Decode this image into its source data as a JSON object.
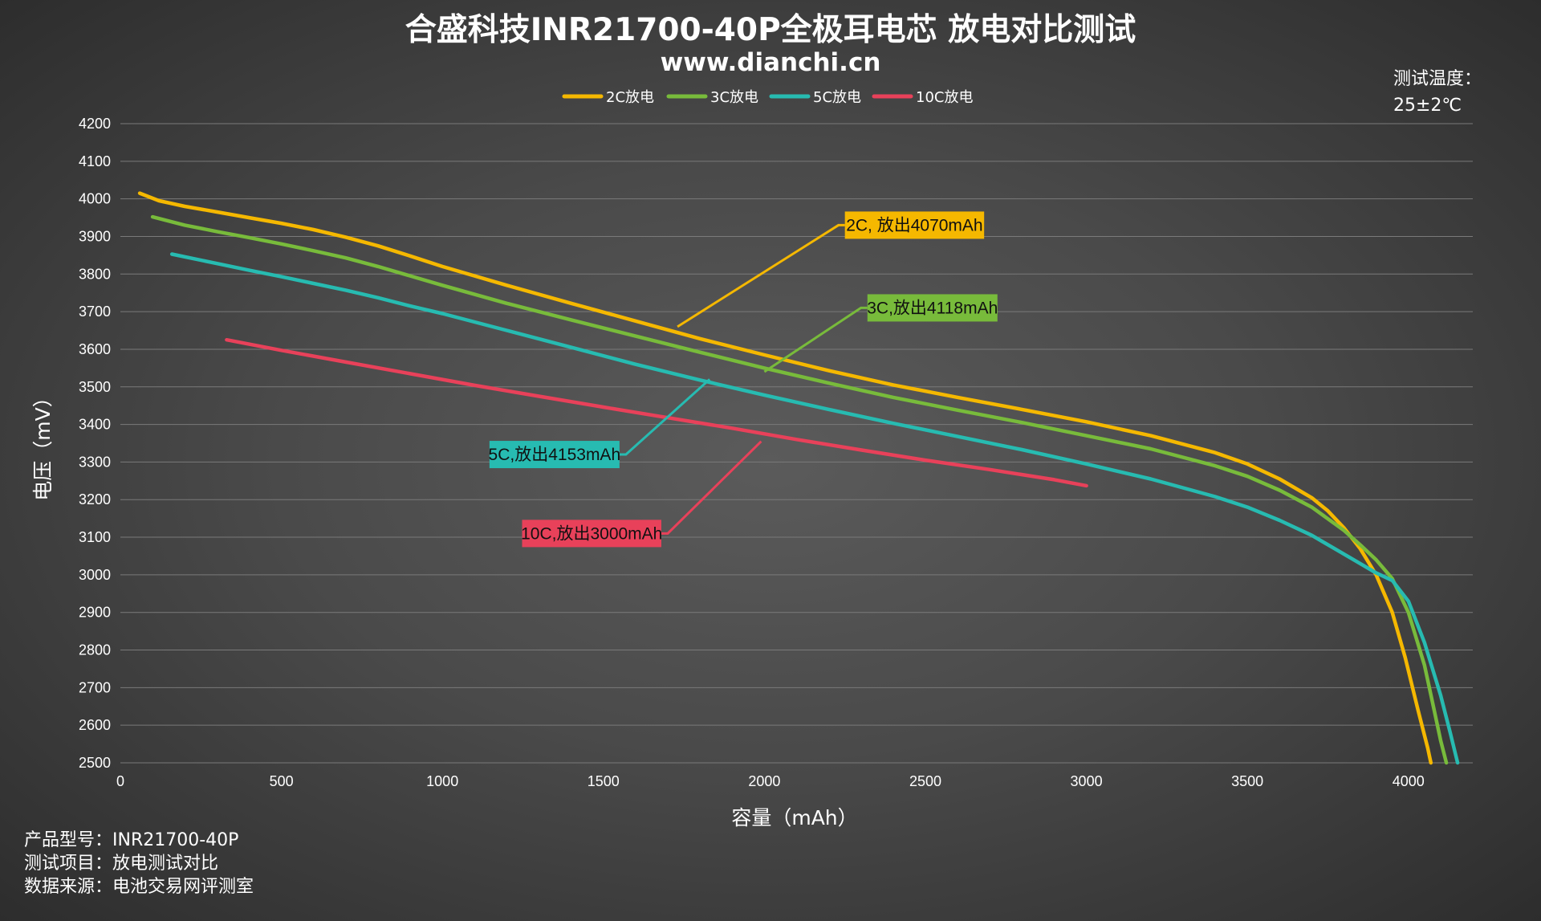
{
  "chart_data": {
    "type": "line",
    "title": "合盛科技INR21700-40P全极耳电芯 放电对比测试",
    "subtitle": "www.dianchi.cn",
    "xlabel": "容量（mAh）",
    "ylabel": "电压（mV）",
    "xlim": [
      0,
      4200
    ],
    "ylim": [
      2500,
      4200
    ],
    "x_ticks": [
      "0",
      "500",
      "1000",
      "1500",
      "2000",
      "2500",
      "3000",
      "3500",
      "4000"
    ],
    "y_ticks": [
      "4200",
      "4100",
      "4000",
      "3900",
      "3800",
      "3700",
      "3600",
      "3500",
      "3400",
      "3300",
      "3200",
      "3100",
      "3000",
      "2900",
      "2800",
      "2700",
      "2600",
      "2500"
    ],
    "grid": "horizontal",
    "legend_position": "top-center",
    "series": [
      {
        "name": "2C放电",
        "color": "#f5b800",
        "x": [
          60,
          120,
          200,
          300,
          400,
          500,
          600,
          700,
          800,
          900,
          1000,
          1200,
          1400,
          1600,
          1800,
          2000,
          2200,
          2400,
          2600,
          2800,
          3000,
          3200,
          3400,
          3500,
          3600,
          3700,
          3750,
          3800,
          3850,
          3900,
          3950,
          3990,
          4030,
          4060,
          4070
        ],
        "y": [
          4015,
          3995,
          3980,
          3965,
          3950,
          3935,
          3918,
          3898,
          3875,
          3848,
          3820,
          3770,
          3722,
          3675,
          3628,
          3585,
          3543,
          3505,
          3472,
          3440,
          3407,
          3370,
          3325,
          3295,
          3255,
          3205,
          3170,
          3125,
          3070,
          3000,
          2900,
          2780,
          2640,
          2540,
          2500
        ]
      },
      {
        "name": "3C放电",
        "color": "#78bb3b",
        "x": [
          100,
          200,
          300,
          400,
          500,
          600,
          700,
          800,
          900,
          1000,
          1200,
          1400,
          1600,
          1800,
          2000,
          2200,
          2400,
          2600,
          2800,
          3000,
          3200,
          3400,
          3500,
          3600,
          3700,
          3800,
          3850,
          3900,
          3950,
          4000,
          4050,
          4080,
          4100,
          4118
        ],
        "y": [
          3952,
          3930,
          3913,
          3897,
          3880,
          3862,
          3843,
          3820,
          3795,
          3770,
          3722,
          3678,
          3635,
          3592,
          3550,
          3510,
          3472,
          3438,
          3405,
          3370,
          3335,
          3290,
          3262,
          3225,
          3180,
          3118,
          3080,
          3040,
          2990,
          2900,
          2760,
          2640,
          2560,
          2500
        ]
      },
      {
        "name": "5C放电",
        "color": "#27bbb1",
        "x": [
          160,
          300,
          400,
          500,
          600,
          700,
          800,
          900,
          1000,
          1200,
          1400,
          1600,
          1800,
          2000,
          2200,
          2400,
          2600,
          2800,
          3000,
          3200,
          3400,
          3500,
          3600,
          3700,
          3800,
          3850,
          3900,
          3950,
          4000,
          4050,
          4100,
          4130,
          4153
        ],
        "y": [
          3853,
          3828,
          3810,
          3793,
          3775,
          3757,
          3737,
          3715,
          3695,
          3650,
          3605,
          3560,
          3518,
          3478,
          3440,
          3403,
          3368,
          3333,
          3295,
          3255,
          3208,
          3180,
          3145,
          3105,
          3055,
          3030,
          3005,
          2985,
          2930,
          2820,
          2680,
          2580,
          2500
        ]
      },
      {
        "name": "10C放电",
        "color": "#e8415a",
        "x": [
          330,
          500,
          700,
          900,
          1100,
          1300,
          1500,
          1700,
          1900,
          2100,
          2300,
          2500,
          2700,
          2900,
          3000
        ],
        "y": [
          3625,
          3597,
          3566,
          3535,
          3504,
          3475,
          3446,
          3418,
          3390,
          3360,
          3332,
          3305,
          3280,
          3253,
          3237
        ]
      }
    ],
    "annotations": [
      {
        "text": "2C, 放出4070mAh",
        "color": "#f5b800",
        "point": [
          1730,
          3660
        ],
        "elbow": [
          2230,
          3930
        ],
        "box": [
          2250,
          3930
        ]
      },
      {
        "text": "3C,放出4118mAh",
        "color": "#78bb3b",
        "point": [
          2000,
          3540
        ],
        "elbow": [
          2300,
          3710
        ],
        "box": [
          2320,
          3710
        ]
      },
      {
        "text": "5C,放出4153mAh",
        "color": "#27bbb1",
        "point": [
          1830,
          3520
        ],
        "elbow": [
          1570,
          3320
        ],
        "box": [
          1550,
          3320
        ]
      },
      {
        "text": "10C,放出3000mAh",
        "color": "#e8415a",
        "point": [
          1990,
          3355
        ],
        "elbow": [
          1700,
          3110
        ],
        "box": [
          1680,
          3110
        ]
      }
    ]
  },
  "note": {
    "line1": "测试温度：",
    "line2": "25±2℃"
  },
  "info": {
    "model": "产品型号：INR21700-40P",
    "item": "测试项目：放电测试对比",
    "source": "数据来源：电池交易网评测室"
  }
}
